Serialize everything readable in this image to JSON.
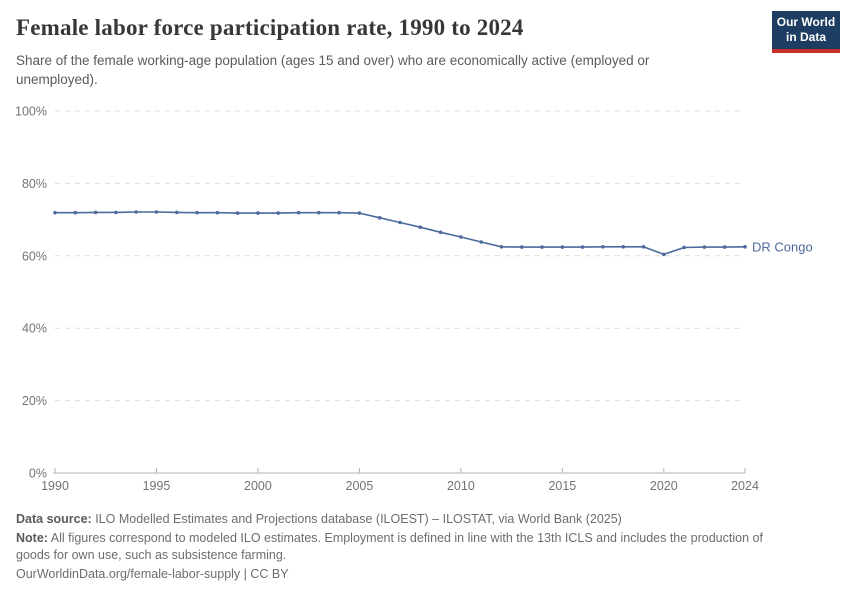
{
  "header": {
    "title": "Female labor force participation rate, 1990 to 2024",
    "subtitle": "Share of the female working-age population (ages 15 and over) who are economically active (employed or unemployed).",
    "logo": {
      "line1": "Our World",
      "line2": "in Data"
    }
  },
  "chart_data": {
    "type": "line",
    "title": "Female labor force participation rate, 1990 to 2024",
    "x": [
      1990,
      1991,
      1992,
      1993,
      1994,
      1995,
      1996,
      1997,
      1998,
      1999,
      2000,
      2001,
      2002,
      2003,
      2004,
      2005,
      2006,
      2007,
      2008,
      2009,
      2010,
      2011,
      2012,
      2013,
      2014,
      2015,
      2016,
      2017,
      2018,
      2019,
      2020,
      2021,
      2022,
      2023,
      2024
    ],
    "series": [
      {
        "name": "DR Congo",
        "color": "#4c6a9c",
        "values": [
          71.9,
          71.9,
          72.0,
          72.0,
          72.1,
          72.1,
          72.0,
          71.9,
          71.9,
          71.8,
          71.8,
          71.8,
          71.9,
          71.9,
          71.9,
          71.8,
          70.5,
          69.2,
          67.9,
          66.5,
          65.2,
          63.8,
          62.5,
          62.4,
          62.4,
          62.4,
          62.4,
          62.5,
          62.5,
          62.5,
          60.4,
          62.3,
          62.4,
          62.4,
          62.5
        ]
      }
    ],
    "xlabel": "",
    "ylabel": "",
    "xlim": [
      1990,
      2024
    ],
    "ylim": [
      0,
      100
    ],
    "xticks": [
      1990,
      1995,
      2000,
      2005,
      2010,
      2015,
      2020,
      2024
    ],
    "yticks": [
      0,
      20,
      40,
      60,
      80,
      100
    ],
    "ytick_suffix": "%",
    "grid": "horizontal-dashed",
    "legend_position": "end-of-line"
  },
  "footer": {
    "data_source_label": "Data source:",
    "data_source_text": " ILO Modelled Estimates and Projections database (ILOEST) – ILOSTAT, via World Bank (2025)",
    "note_label": "Note:",
    "note_text": " All figures correspond to modeled ILO estimates. Employment is defined in line with the 13th ICLS and includes the production of goods for own use, such as subsistence farming.",
    "url": "OurWorldinData.org/female-labor-supply | CC BY"
  },
  "colors": {
    "logo_bg": "#1d3d63",
    "logo_accent": "#c9302c",
    "grid": "#dcdcdc",
    "axis": "#b3b3b3",
    "tick_label": "#737373"
  }
}
